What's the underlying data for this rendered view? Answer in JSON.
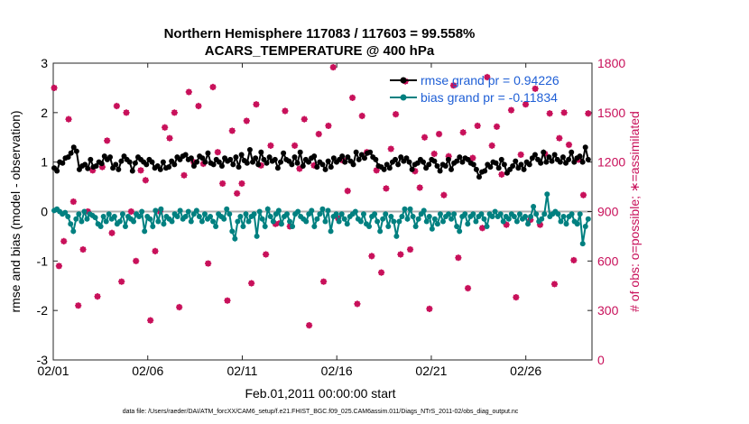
{
  "chart_data": {
    "type": "line",
    "title": "Northern Hemisphere 117083 / 117603 = 99.558%",
    "subtitle": "ACARS_TEMPERATURE @ 400 hPa",
    "xlabel": "Feb.01,2011 00:00:00 start",
    "ylabel": "rmse and bias (model - observation)",
    "y2label": "# of obs: o=possible; ∗=assimilated",
    "footnote": "data file: /Users/raeder/DAI/ATM_forcXX/CAM6_setup/f.e21.FHIST_BGC.f09_025.CAM6assim.011/Diags_NTrS_2011-02/obs_diag_output.nc",
    "x_ticks": [
      "02/01",
      "02/06",
      "02/11",
      "02/16",
      "02/21",
      "02/26"
    ],
    "x_tick_days": [
      1,
      6,
      11,
      16,
      21,
      26
    ],
    "xlim": [
      1,
      29.5
    ],
    "ylim": [
      -3,
      3
    ],
    "y_ticks": [
      "-3",
      "-2",
      "-1",
      "0",
      "1",
      "2",
      "3"
    ],
    "y2lim": [
      0,
      1800
    ],
    "y2_ticks": [
      "0",
      "300",
      "600",
      "900",
      "1200",
      "1500",
      "1800"
    ],
    "grid": false,
    "legend_position": "top-right",
    "colors": {
      "rmse": "#000000",
      "bias": "#008080",
      "obs": "#c8105a",
      "legend_text": "#1f5fd6",
      "zero_line": "#b0b0b0"
    },
    "series": [
      {
        "name": "rmse grand pr = 0.94226",
        "axis": "left",
        "values": [
          0.88,
          0.82,
          1.0,
          0.98,
          1.08,
          1.1,
          1.18,
          1.3,
          1.22,
          0.85,
          0.92,
          0.95,
          0.87,
          1.05,
          0.9,
          0.92,
          1.0,
          0.97,
          1.12,
          1.05,
          1.1,
          0.88,
          0.95,
          0.85,
          1.02,
          1.12,
          1.05,
          1.0,
          0.82,
          0.98,
          1.1,
          1.05,
          1.0,
          0.95,
          1.05,
          1.0,
          0.88,
          0.92,
          0.85,
          1.0,
          0.88,
          0.9,
          1.02,
          0.95,
          1.1,
          1.05,
          1.12,
          1.15,
          1.05,
          1.08,
          0.92,
          1.0,
          1.12,
          1.08,
          1.0,
          1.18,
          0.98,
          0.95,
          1.05,
          1.0,
          0.92,
          1.08,
          1.02,
          1.05,
          0.95,
          1.1,
          0.9,
          1.15,
          1.03,
          0.98,
          1.25,
          1.0,
          1.08,
          0.95,
          1.2,
          1.05,
          0.98,
          1.1,
          1.02,
          1.05,
          0.88,
          1.0,
          1.18,
          1.05,
          1.02,
          0.95,
          1.1,
          0.98,
          1.2,
          0.92,
          1.05,
          1.0,
          1.08,
          1.12,
          0.9,
          1.0,
          0.95,
          0.85,
          1.02,
          0.9,
          1.08,
          1.0,
          1.05,
          1.12,
          1.0,
          1.1,
          1.02,
          0.95,
          1.2,
          1.05,
          1.15,
          1.08,
          1.18,
          1.2,
          1.1,
          1.05,
          0.92,
          0.9,
          0.85,
          0.95,
          0.88,
          1.0,
          1.05,
          0.95,
          1.1,
          1.02,
          1.08,
          1.0,
          0.85,
          0.95,
          0.98,
          1.05,
          1.0,
          0.88,
          0.95,
          1.05,
          1.02,
          0.92,
          0.82,
          0.95,
          0.92,
          1.05,
          0.85,
          0.98,
          1.02,
          1.1,
          1.0,
          1.08,
          1.05,
          0.98,
          0.95,
          0.85,
          0.7,
          0.8,
          0.82,
          0.95,
          0.9,
          1.0,
          0.98,
          0.88,
          1.05,
          0.95,
          0.78,
          0.85,
          0.92,
          1.02,
          0.88,
          0.95,
          0.85,
          1.0,
          0.95,
          1.08,
          1.15,
          1.05,
          0.98,
          1.2,
          1.0,
          1.1,
          1.02,
          1.15,
          1.05,
          1.0,
          1.1,
          0.98,
          1.05,
          1.2,
          1.0,
          1.08,
          1.12,
          1.0,
          1.3,
          1.05
        ]
      },
      {
        "name": "bias grand pr = -0.11834",
        "axis": "left",
        "values": [
          0.02,
          0.05,
          0.0,
          -0.05,
          -0.02,
          -0.1,
          -0.25,
          -0.4,
          -0.15,
          -0.05,
          -0.2,
          0.0,
          -0.15,
          -0.05,
          -0.08,
          -0.12,
          -0.25,
          -0.3,
          -0.1,
          -0.2,
          -0.05,
          -0.15,
          -0.1,
          -0.25,
          -0.2,
          -0.05,
          -0.3,
          -0.1,
          -0.15,
          -0.2,
          -0.05,
          -0.1,
          0.0,
          -0.4,
          -0.1,
          -0.15,
          -0.3,
          0.02,
          -0.2,
          0.05,
          -0.25,
          -0.1,
          -0.15,
          -0.2,
          -0.05,
          -0.1,
          0.02,
          -0.15,
          -0.1,
          0.0,
          -0.2,
          -0.05,
          0.02,
          -0.1,
          -0.2,
          -0.05,
          -0.15,
          -0.1,
          -0.2,
          -0.3,
          -0.05,
          -0.1,
          -0.15,
          0.05,
          -0.05,
          -0.4,
          -0.55,
          -0.2,
          -0.1,
          -0.3,
          -0.05,
          -0.2,
          -0.1,
          -0.05,
          -0.5,
          0.0,
          -0.15,
          -0.3,
          0.05,
          -0.1,
          -0.2,
          -0.05,
          0.02,
          -0.25,
          -0.1,
          -0.05,
          -0.2,
          -0.3,
          -0.05,
          0.0,
          -0.1,
          -0.15,
          -0.2,
          -0.05,
          0.02,
          -0.3,
          -0.15,
          -0.05,
          0.05,
          -0.2,
          0.02,
          -0.4,
          -0.1,
          -0.05,
          -0.2,
          -0.05,
          -0.15,
          -0.25,
          -0.1,
          -0.05,
          0.0,
          -0.15,
          -0.2,
          -0.05,
          -0.25,
          -0.3,
          -0.1,
          -0.05,
          -0.2,
          -0.4,
          -0.15,
          -0.05,
          -0.3,
          -0.1,
          -0.2,
          -0.5,
          -0.2,
          -0.1,
          0.05,
          -0.15,
          0.05,
          -0.1,
          -0.3,
          -0.15,
          -0.05,
          0.02,
          -0.2,
          -0.1,
          -0.35,
          -0.15,
          -0.25,
          -0.05,
          -0.2,
          -0.1,
          -0.05,
          -0.15,
          -0.05,
          -0.3,
          -0.4,
          -0.1,
          -0.05,
          -0.25,
          -0.1,
          -0.05,
          -0.2,
          -0.1,
          -0.05,
          -0.15,
          -0.3,
          -0.05,
          -0.1,
          0.0,
          -0.1,
          -0.05,
          -0.2,
          -0.1,
          -0.15,
          -0.05,
          -0.1,
          -0.2,
          -0.05,
          -0.15,
          -0.1,
          -0.25,
          -0.1,
          0.1,
          -0.05,
          -0.2,
          -0.15,
          -0.05,
          0.35,
          -0.1,
          -0.05,
          0.0,
          -0.05,
          -0.2,
          -0.1,
          -0.25,
          -0.1,
          -0.05,
          -0.2,
          -0.25,
          -0.05,
          -0.65,
          -0.3,
          -0.15
        ]
      },
      {
        "name": "obs possible",
        "axis": "right",
        "marker": "o",
        "values": [
          1650,
          570,
          720,
          1460,
          960,
          330,
          670,
          900,
          1150,
          385,
          1170,
          1330,
          770,
          1540,
          475,
          1500,
          900,
          600,
          1150,
          1090,
          240,
          660,
          900,
          1410,
          1345,
          1500,
          320,
          1120,
          1625,
          1200,
          1540,
          1190,
          585,
          1655,
          1260,
          1070,
          360,
          1390,
          1010,
          1070,
          1450,
          465,
          1550,
          1180,
          640,
          1300,
          825,
          830,
          1510,
          810,
          1300,
          1160,
          1460,
          210,
          1180,
          1370,
          475,
          1420,
          1775,
          860,
          1210,
          1025,
          1590,
          340,
          1480,
          1260,
          630,
          1150,
          530,
          1040,
          1280,
          1490,
          640,
          1690,
          670,
          1145,
          1045,
          1350,
          310,
          1250,
          1370,
          1000,
          1235,
          1665,
          620,
          1380,
          435,
          1225,
          1420,
          800,
          1715,
          1300,
          1415,
          1125,
          820,
          1515,
          380,
          1245,
          1550,
          850,
          1645,
          820,
          1250,
          1495,
          460,
          1345,
          1500,
          1305,
          605,
          1215,
          1000,
          1495
        ]
      },
      {
        "name": "obs assimilated",
        "axis": "right",
        "marker": "*",
        "values": [
          1650,
          570,
          720,
          1460,
          960,
          330,
          670,
          900,
          1150,
          385,
          1170,
          1330,
          770,
          1540,
          475,
          1500,
          900,
          600,
          1150,
          1090,
          240,
          660,
          900,
          1410,
          1345,
          1500,
          320,
          1120,
          1625,
          1200,
          1540,
          1190,
          585,
          1655,
          1260,
          1070,
          360,
          1390,
          1010,
          1070,
          1450,
          465,
          1550,
          1180,
          640,
          1300,
          825,
          830,
          1510,
          810,
          1300,
          1160,
          1460,
          210,
          1180,
          1370,
          475,
          1420,
          1775,
          860,
          1210,
          1025,
          1590,
          340,
          1480,
          1260,
          630,
          1150,
          530,
          1040,
          1280,
          1490,
          640,
          1690,
          670,
          1145,
          1045,
          1350,
          310,
          1250,
          1370,
          1000,
          1235,
          1665,
          620,
          1380,
          435,
          1225,
          1420,
          800,
          1715,
          1300,
          1415,
          1125,
          820,
          1515,
          380,
          1245,
          1550,
          850,
          1645,
          820,
          1250,
          1495,
          460,
          1345,
          1500,
          1305,
          605,
          1215,
          1000,
          1495
        ]
      }
    ]
  }
}
